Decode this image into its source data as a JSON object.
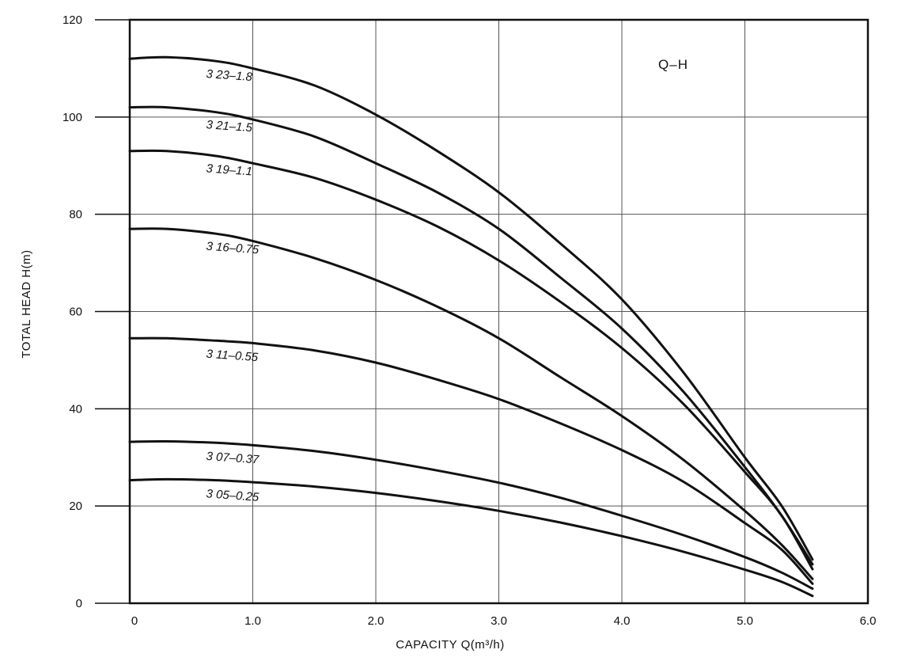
{
  "chart_data": {
    "type": "line",
    "title": "Q–H",
    "xlabel": "CAPACITY  Q(m³/h)",
    "ylabel": "TOTAL HEAD  H(m)",
    "xlim": [
      0,
      6.0
    ],
    "ylim": [
      0,
      120
    ],
    "xticks": [
      0,
      1.0,
      2.0,
      3.0,
      4.0,
      5.0,
      6.0
    ],
    "xtick_labels": [
      "0",
      "1.0",
      "2.0",
      "3.0",
      "4.0",
      "5.0",
      "6.0"
    ],
    "yticks": [
      0,
      20,
      40,
      60,
      80,
      100,
      120
    ],
    "ytick_labels": [
      "0",
      "20",
      "40",
      "60",
      "80",
      "100",
      "120"
    ],
    "grid": true,
    "series": [
      {
        "name": "3 23–1.8",
        "x": [
          0,
          0.3,
          0.7,
          1.0,
          1.5,
          2.0,
          2.5,
          3.0,
          3.5,
          4.0,
          4.5,
          5.0,
          5.3,
          5.55
        ],
        "y": [
          112,
          112.3,
          111.5,
          110,
          106.5,
          100.5,
          93,
          84.5,
          74,
          62.5,
          47.5,
          30,
          20,
          9
        ]
      },
      {
        "name": "3 21–1.5",
        "x": [
          0,
          0.3,
          0.7,
          1.0,
          1.5,
          2.0,
          2.5,
          3.0,
          3.5,
          4.0,
          4.5,
          5.0,
          5.3,
          5.55
        ],
        "y": [
          102,
          102,
          101,
          99.5,
          96,
          90.5,
          84.5,
          77,
          67,
          56.5,
          43.5,
          28,
          18,
          8
        ]
      },
      {
        "name": "3 19–1.1",
        "x": [
          0,
          0.3,
          0.7,
          1.0,
          1.5,
          2.0,
          2.5,
          3.0,
          3.5,
          4.0,
          4.5,
          5.0,
          5.3,
          5.55
        ],
        "y": [
          93,
          93,
          92,
          90.5,
          87.5,
          83,
          77.5,
          70.5,
          62,
          52.5,
          41,
          27,
          18,
          7
        ]
      },
      {
        "name": "3 16–0.75",
        "x": [
          0,
          0.3,
          0.7,
          1.0,
          1.5,
          2.0,
          2.5,
          3.0,
          3.5,
          4.0,
          4.5,
          5.0,
          5.3,
          5.55
        ],
        "y": [
          77,
          77,
          76,
          74.5,
          71,
          66.5,
          61,
          54.5,
          46.5,
          38.5,
          29.5,
          19,
          12,
          5
        ]
      },
      {
        "name": "3 11–0.55",
        "x": [
          0,
          0.3,
          0.7,
          1.0,
          1.5,
          2.0,
          2.5,
          3.0,
          3.5,
          4.0,
          4.5,
          5.0,
          5.3,
          5.55
        ],
        "y": [
          54.5,
          54.5,
          54,
          53.5,
          52,
          49.5,
          46,
          42,
          37,
          31.5,
          25,
          16.5,
          11,
          4
        ]
      },
      {
        "name": "3 07–0.37",
        "x": [
          0,
          0.3,
          0.7,
          1.0,
          1.5,
          2.0,
          2.5,
          3.0,
          3.5,
          4.0,
          4.5,
          5.0,
          5.3,
          5.55
        ],
        "y": [
          33.2,
          33.3,
          33,
          32.5,
          31.3,
          29.5,
          27.3,
          24.8,
          21.7,
          18,
          14,
          9.5,
          6.3,
          3
        ]
      },
      {
        "name": "3 05–0.25",
        "x": [
          0,
          0.3,
          0.7,
          1.0,
          1.5,
          2.0,
          2.5,
          3.0,
          3.5,
          4.0,
          4.5,
          5.0,
          5.3,
          5.55
        ],
        "y": [
          25.3,
          25.5,
          25.3,
          24.9,
          24,
          22.7,
          21,
          19,
          16.6,
          13.8,
          10.6,
          6.9,
          4.4,
          1.5
        ]
      }
    ]
  }
}
